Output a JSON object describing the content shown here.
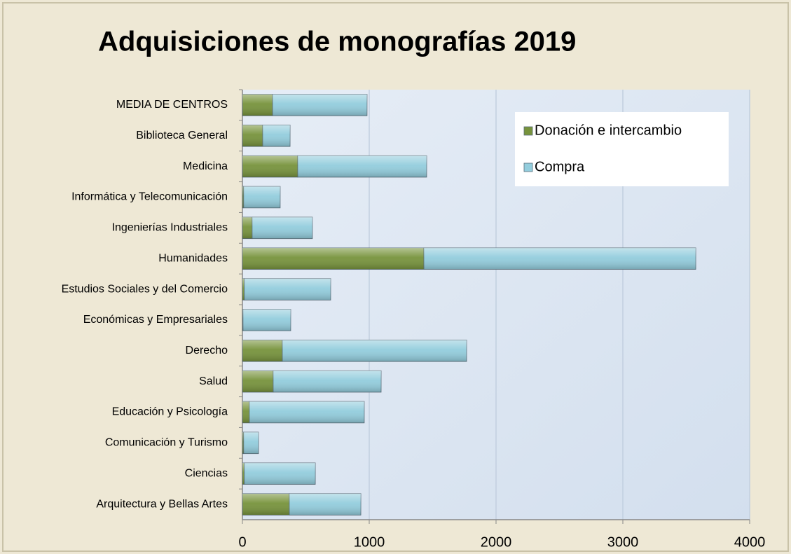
{
  "chart_data": {
    "type": "stacked-barh",
    "title": "Adquisiciones de monografías 2019",
    "categories": [
      "MEDIA DE CENTROS",
      "Biblioteca General",
      "Medicina",
      "Informática y Telecomunicación",
      "Ingenierías Industriales",
      "Humanidades",
      "Estudios Sociales y del Comercio",
      "Económicas y Empresariales",
      "Derecho",
      "Salud",
      "Educación y Psicología",
      "Comunicación y Turismo",
      "Ciencias",
      "Arquitectura y Bellas Artes"
    ],
    "series": [
      {
        "name": "Donación e intercambio",
        "color": "#77933c",
        "values": [
          238,
          160,
          436,
          10,
          77,
          1431,
          15,
          5,
          315,
          243,
          55,
          10,
          15,
          370
        ]
      },
      {
        "name": "Compra",
        "color": "#93cddd",
        "values": [
          745,
          216,
          1017,
          288,
          475,
          2144,
          681,
          376,
          1453,
          851,
          906,
          117,
          560,
          564
        ]
      }
    ],
    "xlim": [
      0,
      4000
    ],
    "xticks": [
      0,
      1000,
      2000,
      3000,
      4000
    ],
    "grid": true,
    "legend": "upper right"
  }
}
